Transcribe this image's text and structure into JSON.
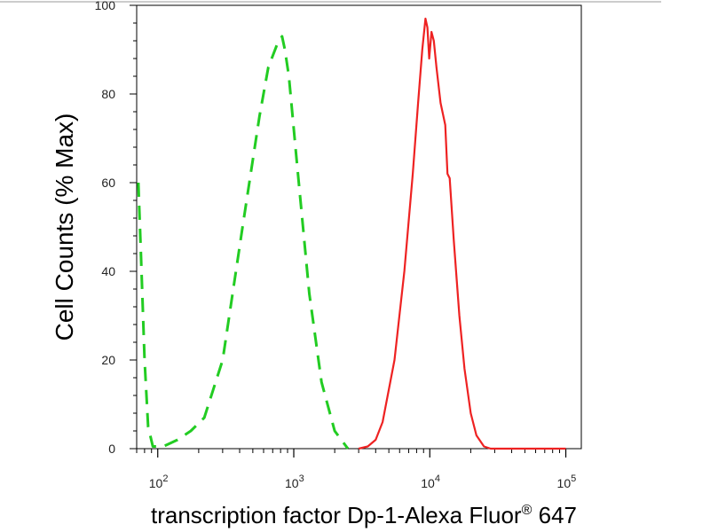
{
  "chart_data": {
    "type": "line",
    "xlabel_main": "transcription factor Dp-1-Alexa Fluor",
    "xlabel_sup": "®",
    "xlabel_tail": " 647",
    "ylabel": "Cell Counts (% Max)",
    "x_scale": "log",
    "xlim": [
      70,
      130000
    ],
    "ylim": [
      0,
      100
    ],
    "y_ticks": [
      0,
      20,
      40,
      60,
      80,
      100
    ],
    "y_tick_labels": [
      "0",
      "20",
      "40",
      "60",
      "80",
      "100"
    ],
    "x_ticks": [
      100,
      1000,
      10000,
      100000
    ],
    "x_tick_labels": [
      {
        "base": "10",
        "exp": "2"
      },
      {
        "base": "10",
        "exp": "3"
      },
      {
        "base": "10",
        "exp": "4"
      },
      {
        "base": "10",
        "exp": "5"
      }
    ],
    "grid": false,
    "series": [
      {
        "color": "#22cc22",
        "style": "dashed",
        "x": [
          72,
          75,
          80,
          85,
          92,
          110,
          140,
          175,
          220,
          300,
          420,
          560,
          650,
          750,
          820,
          860,
          920,
          1050,
          1300,
          1600,
          2000,
          2500
        ],
        "y": [
          60,
          45,
          20,
          5,
          0.5,
          0.5,
          2,
          4,
          7,
          20,
          50,
          75,
          86,
          91,
          93,
          90,
          84,
          65,
          35,
          15,
          4,
          0
        ]
      },
      {
        "color": "#ee2222",
        "style": "solid",
        "x": [
          3000,
          3500,
          4000,
          4500,
          5500,
          6500,
          7500,
          8200,
          8800,
          9300,
          9600,
          9900,
          10300,
          10700,
          11200,
          12000,
          13000,
          13500,
          14000,
          15000,
          16500,
          18000,
          20000,
          22000,
          25000,
          28000,
          100000
        ],
        "y": [
          0,
          0.5,
          2,
          6,
          20,
          40,
          62,
          78,
          90,
          97,
          95,
          88,
          94,
          92,
          86,
          78,
          73,
          62,
          61,
          47,
          30,
          18,
          8,
          3,
          0.5,
          0,
          0
        ]
      }
    ]
  }
}
